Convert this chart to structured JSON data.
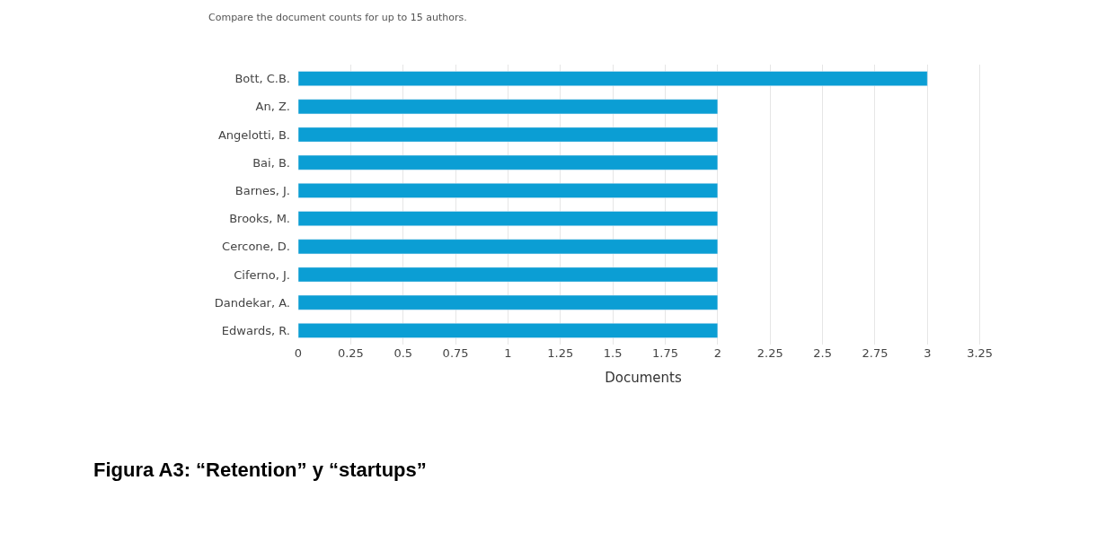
{
  "chart_data": {
    "type": "bar",
    "orientation": "horizontal",
    "title": "Compare the document counts for up to 15 authors.",
    "xlabel": "Documents",
    "categories": [
      "Bott, C.B.",
      "An, Z.",
      "Angelotti, B.",
      "Bai, B.",
      "Barnes, J.",
      "Brooks, M.",
      "Cercone, D.",
      "Ciferno, J.",
      "Dandekar, A.",
      "Edwards, R."
    ],
    "values": [
      3,
      2,
      2,
      2,
      2,
      2,
      2,
      2,
      2,
      2
    ],
    "color": "#0b9ed4",
    "xlim": [
      0,
      3.25
    ],
    "xticks": [
      0,
      0.25,
      0.5,
      0.75,
      1,
      1.25,
      1.5,
      1.75,
      2,
      2.25,
      2.5,
      2.75,
      3,
      3.25
    ],
    "grid": "x",
    "annotations": [
      "Figura A3: “Retention” y “startups”"
    ]
  }
}
